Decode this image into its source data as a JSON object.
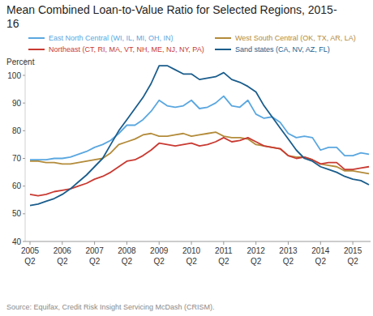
{
  "chart_data": {
    "type": "line",
    "title": "Mean Combined Loan-to-Value Ratio for Selected Regions, 2015-16",
    "y_label": "Percent",
    "source": "Source: Equifax, Credit Risk Insight Servicing McDash (CRISM).",
    "legend": "top",
    "grid": false,
    "ylim": [
      40,
      106
    ],
    "yticks": [
      40,
      50,
      60,
      70,
      80,
      90,
      100
    ],
    "categories": [
      "2005 Q2",
      null,
      null,
      null,
      "2006 Q2",
      null,
      null,
      null,
      "2007 Q2",
      null,
      null,
      null,
      "2008 Q2",
      null,
      null,
      null,
      "2009 Q2",
      null,
      null,
      null,
      "2010 Q2",
      null,
      null,
      null,
      "2011 Q2",
      null,
      null,
      null,
      "2012 Q2",
      null,
      null,
      null,
      "2013 Q2",
      null,
      null,
      null,
      "2014 Q2",
      null,
      null,
      null,
      "2015 Q2",
      null,
      null
    ],
    "series": [
      {
        "name": "East North Central (WI, IL, MI, OH, IN)",
        "color": "#5aa7e0",
        "values": [
          69.5,
          69.5,
          69.5,
          70,
          70,
          70.5,
          71.5,
          72.5,
          74,
          75,
          76.5,
          79,
          82,
          82,
          84,
          87,
          91,
          89,
          88.5,
          89,
          91,
          88,
          88.5,
          90,
          92.5,
          89,
          88.5,
          91,
          86,
          84.5,
          85,
          83,
          79,
          77.5,
          78,
          77.5,
          73,
          74,
          74,
          71,
          71,
          72,
          71.5
        ]
      },
      {
        "name": "West South Central (OK, TX, AR, LA)",
        "color": "#b38b3a",
        "values": [
          69,
          69,
          68.5,
          68.5,
          68,
          68,
          68.5,
          69,
          69.5,
          70,
          72,
          75,
          76,
          77,
          78.5,
          79,
          78,
          78,
          78.5,
          79,
          78,
          78.5,
          79,
          79.5,
          78,
          77.5,
          77.5,
          77,
          75,
          74.5,
          74,
          73.5,
          71,
          70.5,
          70.5,
          69.5,
          68,
          67.5,
          67,
          65.5,
          65.5,
          65,
          64.5
        ]
      },
      {
        "name": "Northeast (CT, RI, MA, VT, NH, ME, NJ, NY, PA)",
        "color": "#c93a32",
        "values": [
          57,
          56.5,
          57,
          58,
          58.5,
          59,
          60,
          61,
          62.5,
          63.5,
          65,
          67,
          69,
          69.5,
          71,
          73,
          75.5,
          75,
          74.5,
          75,
          75.5,
          74.5,
          75,
          76,
          77.5,
          76,
          76.5,
          77.5,
          76,
          74.5,
          74,
          73.5,
          71,
          70,
          70.5,
          69.5,
          68,
          68.5,
          68.5,
          66,
          66,
          66.5,
          67
        ]
      },
      {
        "name": "Sand states (CA, NV, AZ, FL)",
        "color": "#1a5d8c",
        "values": [
          53,
          53.5,
          54.5,
          55.5,
          57,
          59,
          61.5,
          64,
          67,
          70,
          75,
          80,
          84,
          88,
          92,
          97,
          103.5,
          103.5,
          102,
          100.5,
          100.5,
          98.5,
          99,
          99.5,
          101,
          98.5,
          97.5,
          96,
          94,
          89,
          85,
          81,
          77,
          73,
          70,
          69,
          67,
          66,
          65,
          63.5,
          62.5,
          62,
          60.5
        ]
      }
    ]
  }
}
